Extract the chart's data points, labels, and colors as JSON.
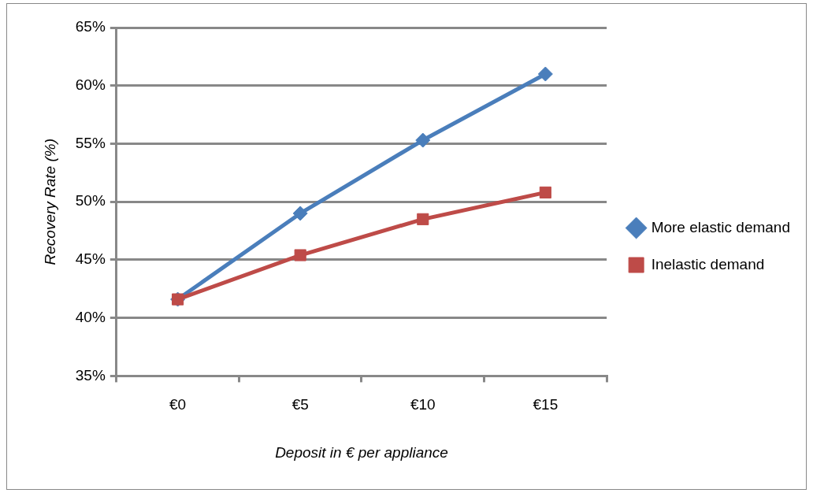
{
  "chart_data": {
    "type": "line",
    "xlabel": "Deposit in € per appliance",
    "ylabel": "Recovery Rate (%)",
    "categories": [
      "€0",
      "€5",
      "€10",
      "€15"
    ],
    "series": [
      {
        "name": "More elastic demand",
        "color": "#4a7ebb",
        "marker": "diamond",
        "values": [
          41.6,
          49.0,
          55.3,
          61.0
        ]
      },
      {
        "name": "Inelastic demand",
        "color": "#be4b48",
        "marker": "square",
        "values": [
          41.6,
          45.4,
          48.5,
          50.8
        ]
      }
    ],
    "ylim": [
      35,
      65
    ],
    "yticks": [
      {
        "value": 35,
        "label": "35%"
      },
      {
        "value": 40,
        "label": "40%"
      },
      {
        "value": 45,
        "label": "45%"
      },
      {
        "value": 50,
        "label": "50%"
      },
      {
        "value": 55,
        "label": "55%"
      },
      {
        "value": 60,
        "label": "60%"
      },
      {
        "value": 65,
        "label": "65%"
      }
    ],
    "grid": "y",
    "legend": "right"
  }
}
